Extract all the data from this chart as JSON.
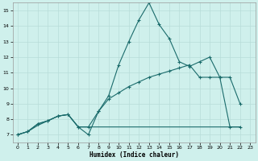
{
  "bg_color": "#cff0ec",
  "grid_color": "#b8dcd8",
  "line_color": "#1a6b6b",
  "xlabel": "Humidex (Indice chaleur)",
  "xlim": [
    -0.5,
    23.5
  ],
  "ylim": [
    6.5,
    15.5
  ],
  "xticks": [
    0,
    1,
    2,
    3,
    4,
    5,
    6,
    7,
    8,
    9,
    10,
    11,
    12,
    13,
    14,
    15,
    16,
    17,
    18,
    19,
    20,
    21,
    22,
    23
  ],
  "yticks": [
    7,
    8,
    9,
    10,
    11,
    12,
    13,
    14,
    15
  ],
  "series1_x": [
    0,
    1,
    2,
    3,
    4,
    5,
    6,
    7,
    8,
    9,
    10,
    11,
    12,
    13,
    14,
    15,
    16,
    17,
    18,
    19,
    20,
    21,
    22
  ],
  "series1_y": [
    7.0,
    7.2,
    7.7,
    7.9,
    8.2,
    8.3,
    7.5,
    7.0,
    8.5,
    9.5,
    11.5,
    13.0,
    14.4,
    15.5,
    14.1,
    13.2,
    11.7,
    11.4,
    11.7,
    12.0,
    10.7,
    10.7,
    9.0
  ],
  "series2_x": [
    0,
    1,
    2,
    3,
    4,
    5,
    6,
    7,
    8,
    9,
    10,
    11,
    12,
    13,
    14,
    15,
    16,
    17,
    18,
    19,
    20,
    21,
    22
  ],
  "series2_y": [
    7.0,
    7.2,
    7.7,
    7.9,
    8.2,
    8.3,
    7.5,
    7.5,
    8.5,
    9.3,
    9.7,
    10.1,
    10.4,
    10.7,
    10.9,
    11.1,
    11.3,
    11.5,
    10.7,
    10.7,
    10.7,
    7.5,
    7.5
  ],
  "series3_x": [
    0,
    1,
    2,
    3,
    4,
    5,
    6,
    7,
    8,
    9,
    10,
    11,
    12,
    13,
    14,
    15,
    16,
    17,
    18,
    19,
    20,
    21,
    22
  ],
  "series3_y": [
    7.0,
    7.2,
    7.6,
    7.9,
    8.2,
    8.3,
    7.5,
    7.5,
    7.5,
    7.5,
    7.5,
    7.5,
    7.5,
    7.5,
    7.5,
    7.5,
    7.5,
    7.5,
    7.5,
    7.5,
    7.5,
    7.5,
    7.5
  ]
}
